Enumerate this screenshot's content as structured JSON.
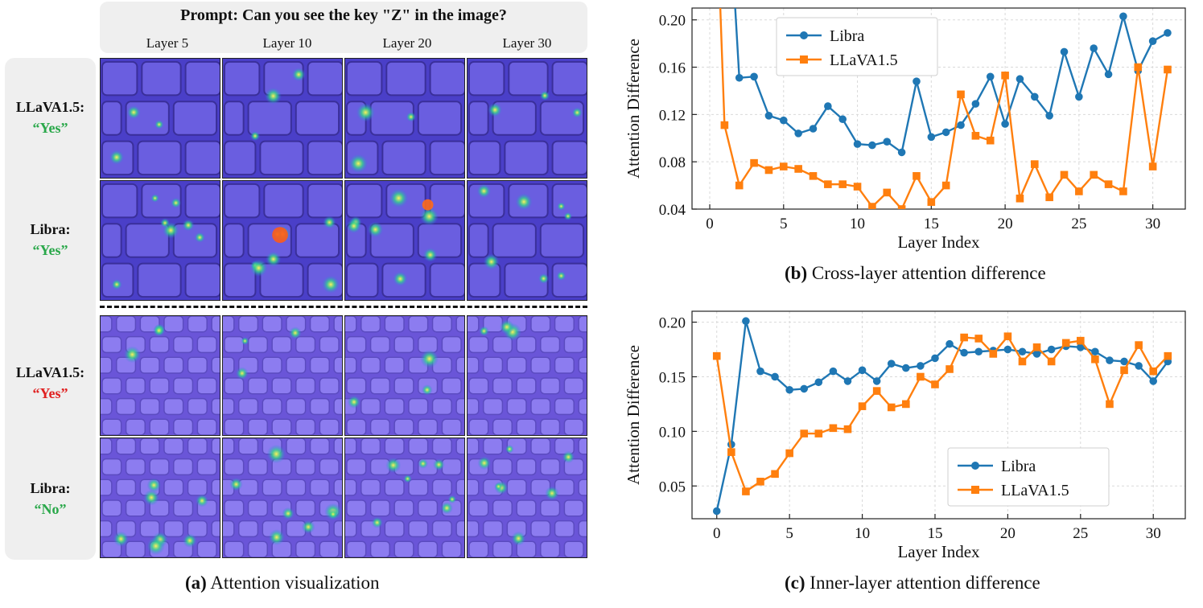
{
  "figure": {
    "prompt": "Prompt: Can you see the key \"Z\" in the image?",
    "layers": [
      "Layer 5",
      "Layer 10",
      "Layer 20",
      "Layer 30"
    ],
    "rows": [
      {
        "model": "LLaVA1.5:",
        "answer": "“Yes”",
        "answer_color": "#2aa84a"
      },
      {
        "model": "Libra:",
        "answer": "“Yes”",
        "answer_color": "#2aa84a"
      },
      {
        "model": "LLaVA1.5:",
        "answer": "“Yes”",
        "answer_color": "#e02020"
      },
      {
        "model": "Libra:",
        "answer": "“No”",
        "answer_color": "#2aa84a"
      }
    ],
    "caption_a_label": "(a)",
    "caption_a_text": "Attention visualization",
    "caption_b_label": "(b)",
    "caption_b_text": "Cross-layer attention difference",
    "caption_c_label": "(c)",
    "caption_c_text": "Inner-layer attention difference"
  },
  "chart_data": [
    {
      "type": "line",
      "xlabel": "Layer Index",
      "ylabel": "Attention Difference",
      "xlim": [
        -1.2,
        32.2
      ],
      "ylim": [
        0.04,
        0.21
      ],
      "xticks": [
        0,
        5,
        10,
        15,
        20,
        25,
        30
      ],
      "yticks": [
        0.04,
        0.08,
        0.12,
        0.16,
        0.2
      ],
      "ytick_labels": [
        "0.04",
        "0.08",
        "0.12",
        "0.16",
        "0.20"
      ],
      "grid": true,
      "legend": "top-left",
      "series": [
        {
          "name": "Libra",
          "color": "#1f77b4",
          "marker": "circle",
          "x": [
            2,
            3,
            4,
            5,
            6,
            7,
            8,
            9,
            10,
            11,
            12,
            13,
            14,
            15,
            16,
            17,
            18,
            19,
            20,
            21,
            22,
            23,
            24,
            25,
            26,
            27,
            28,
            29,
            30,
            31
          ],
          "y": [
            0.151,
            0.152,
            0.119,
            0.115,
            0.104,
            0.108,
            0.127,
            0.116,
            0.095,
            0.094,
            0.097,
            0.088,
            0.148,
            0.101,
            0.105,
            0.111,
            0.129,
            0.152,
            0.112,
            0.15,
            0.135,
            0.119,
            0.173,
            0.135,
            0.176,
            0.154,
            0.203,
            0.157,
            0.182,
            0.189
          ],
          "offscale_start": {
            "x": 1.7,
            "y": 0.215
          }
        },
        {
          "name": "LLaVA1.5",
          "color": "#ff7f0e",
          "marker": "square",
          "x": [
            1,
            2,
            3,
            4,
            5,
            6,
            7,
            8,
            9,
            10,
            11,
            12,
            13,
            14,
            15,
            16,
            17,
            18,
            19,
            20,
            21,
            22,
            23,
            24,
            25,
            26,
            27,
            28,
            29,
            30,
            31
          ],
          "y": [
            0.111,
            0.06,
            0.079,
            0.073,
            0.076,
            0.074,
            0.068,
            0.061,
            0.061,
            0.059,
            0.042,
            0.054,
            0.04,
            0.068,
            0.046,
            0.06,
            0.137,
            0.102,
            0.098,
            0.153,
            0.049,
            0.078,
            0.05,
            0.069,
            0.055,
            0.069,
            0.061,
            0.055,
            0.16,
            0.076,
            0.158
          ],
          "offscale_start": {
            "x": 0.7,
            "y": 0.215
          }
        }
      ]
    },
    {
      "type": "line",
      "xlabel": "Layer Index",
      "ylabel": "Attention Difference",
      "xlim": [
        -1.7,
        32.2
      ],
      "ylim": [
        0.02,
        0.21
      ],
      "xticks": [
        0,
        5,
        10,
        15,
        20,
        25,
        30
      ],
      "yticks": [
        0.05,
        0.1,
        0.15,
        0.2
      ],
      "ytick_labels": [
        "0.05",
        "0.10",
        "0.15",
        "0.20"
      ],
      "grid": true,
      "legend": "bottom-center",
      "series": [
        {
          "name": "Libra",
          "color": "#1f77b4",
          "marker": "circle",
          "x": [
            0,
            1,
            2,
            3,
            4,
            5,
            6,
            7,
            8,
            9,
            10,
            11,
            12,
            13,
            14,
            15,
            16,
            17,
            18,
            19,
            20,
            21,
            22,
            23,
            24,
            25,
            26,
            27,
            28,
            29,
            30,
            31
          ],
          "y": [
            0.027,
            0.088,
            0.201,
            0.155,
            0.15,
            0.138,
            0.139,
            0.145,
            0.155,
            0.146,
            0.156,
            0.146,
            0.162,
            0.158,
            0.16,
            0.167,
            0.18,
            0.172,
            0.173,
            0.174,
            0.175,
            0.173,
            0.171,
            0.175,
            0.178,
            0.177,
            0.173,
            0.165,
            0.164,
            0.16,
            0.146,
            0.164
          ]
        },
        {
          "name": "LLaVA1.5",
          "color": "#ff7f0e",
          "marker": "square",
          "x": [
            0,
            1,
            2,
            3,
            4,
            5,
            6,
            7,
            8,
            9,
            10,
            11,
            12,
            13,
            14,
            15,
            16,
            17,
            18,
            19,
            20,
            21,
            22,
            23,
            24,
            25,
            26,
            27,
            28,
            29,
            30,
            31
          ],
          "y": [
            0.169,
            0.081,
            0.045,
            0.054,
            0.061,
            0.08,
            0.098,
            0.098,
            0.103,
            0.102,
            0.123,
            0.137,
            0.122,
            0.125,
            0.15,
            0.143,
            0.157,
            0.186,
            0.185,
            0.171,
            0.187,
            0.164,
            0.177,
            0.164,
            0.181,
            0.183,
            0.166,
            0.125,
            0.156,
            0.179,
            0.155,
            0.169
          ]
        }
      ]
    }
  ]
}
